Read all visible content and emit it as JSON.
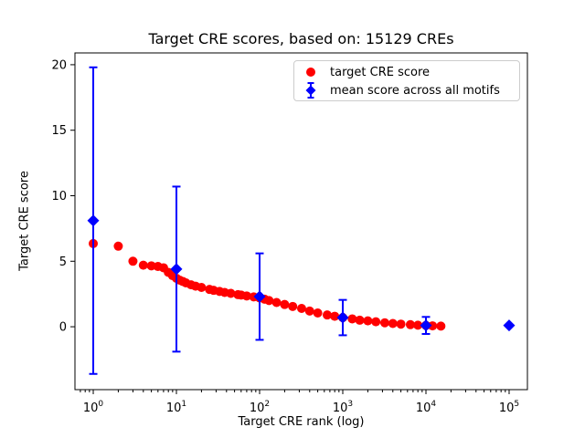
{
  "chart_data": {
    "type": "scatter",
    "title": "Target CRE scores, based on: 15129 CREs",
    "x_axis": {
      "label": "Target CRE rank (log)",
      "scale": "log",
      "log10_range": [
        -0.22,
        5.22
      ],
      "major_ticks": [
        {
          "value": 1,
          "base": "10",
          "exp": "0"
        },
        {
          "value": 10,
          "base": "10",
          "exp": "1"
        },
        {
          "value": 100,
          "base": "10",
          "exp": "2"
        },
        {
          "value": 1000,
          "base": "10",
          "exp": "3"
        },
        {
          "value": 10000,
          "base": "10",
          "exp": "4"
        },
        {
          "value": 100000,
          "base": "10",
          "exp": "5"
        }
      ]
    },
    "y_axis": {
      "label": "Target CRE score",
      "range": [
        -4.8,
        20.9
      ],
      "ticks": [
        {
          "value": 0,
          "label": "0"
        },
        {
          "value": 5,
          "label": "5"
        },
        {
          "value": 10,
          "label": "10"
        },
        {
          "value": 15,
          "label": "15"
        },
        {
          "value": 20,
          "label": "20"
        }
      ]
    },
    "grid": false,
    "legend": {
      "position": "upper right"
    },
    "colors": {
      "axis": "#000000",
      "background": "#ffffff",
      "legend_border": "#cccccc",
      "target_score": "#ff0000",
      "mean_score": "#0000ff"
    },
    "series": [
      {
        "name": "target CRE score",
        "marker": "circle",
        "color": "#ff0000",
        "points_format": "[rank, score]",
        "points": [
          [
            1,
            6.35
          ],
          [
            2,
            6.15
          ],
          [
            3,
            5.0
          ],
          [
            4,
            4.7
          ],
          [
            5,
            4.65
          ],
          [
            6,
            4.6
          ],
          [
            7,
            4.5
          ],
          [
            8,
            4.15
          ],
          [
            9,
            3.9
          ],
          [
            10,
            3.7
          ],
          [
            11,
            3.55
          ],
          [
            12,
            3.45
          ],
          [
            13,
            3.35
          ],
          [
            15,
            3.2
          ],
          [
            17,
            3.1
          ],
          [
            20,
            3.0
          ],
          [
            25,
            2.85
          ],
          [
            28,
            2.78
          ],
          [
            33,
            2.7
          ],
          [
            38,
            2.62
          ],
          [
            45,
            2.55
          ],
          [
            55,
            2.45
          ],
          [
            60,
            2.42
          ],
          [
            70,
            2.35
          ],
          [
            85,
            2.28
          ],
          [
            100,
            2.2
          ],
          [
            115,
            2.1
          ],
          [
            130,
            2.0
          ],
          [
            160,
            1.85
          ],
          [
            200,
            1.7
          ],
          [
            250,
            1.55
          ],
          [
            320,
            1.4
          ],
          [
            400,
            1.2
          ],
          [
            500,
            1.05
          ],
          [
            650,
            0.9
          ],
          [
            800,
            0.8
          ],
          [
            1000,
            0.7
          ],
          [
            1300,
            0.6
          ],
          [
            1600,
            0.5
          ],
          [
            2000,
            0.45
          ],
          [
            2500,
            0.38
          ],
          [
            3200,
            0.3
          ],
          [
            4000,
            0.25
          ],
          [
            5000,
            0.2
          ],
          [
            6500,
            0.16
          ],
          [
            8000,
            0.12
          ],
          [
            10000,
            0.1
          ],
          [
            12000,
            0.07
          ],
          [
            15129,
            0.05
          ]
        ]
      },
      {
        "name": "mean score across all motifs",
        "marker": "diamond",
        "color": "#0000ff",
        "points": [
          {
            "x": 1,
            "y": 8.1,
            "yerr": 11.7
          },
          {
            "x": 10,
            "y": 4.4,
            "yerr": 6.3
          },
          {
            "x": 100,
            "y": 2.3,
            "yerr": 3.3
          },
          {
            "x": 1000,
            "y": 0.7,
            "yerr": 1.35
          },
          {
            "x": 10000,
            "y": 0.1,
            "yerr": 0.65
          },
          {
            "x": 100000,
            "y": 0.1,
            "yerr": 0
          }
        ]
      }
    ]
  }
}
